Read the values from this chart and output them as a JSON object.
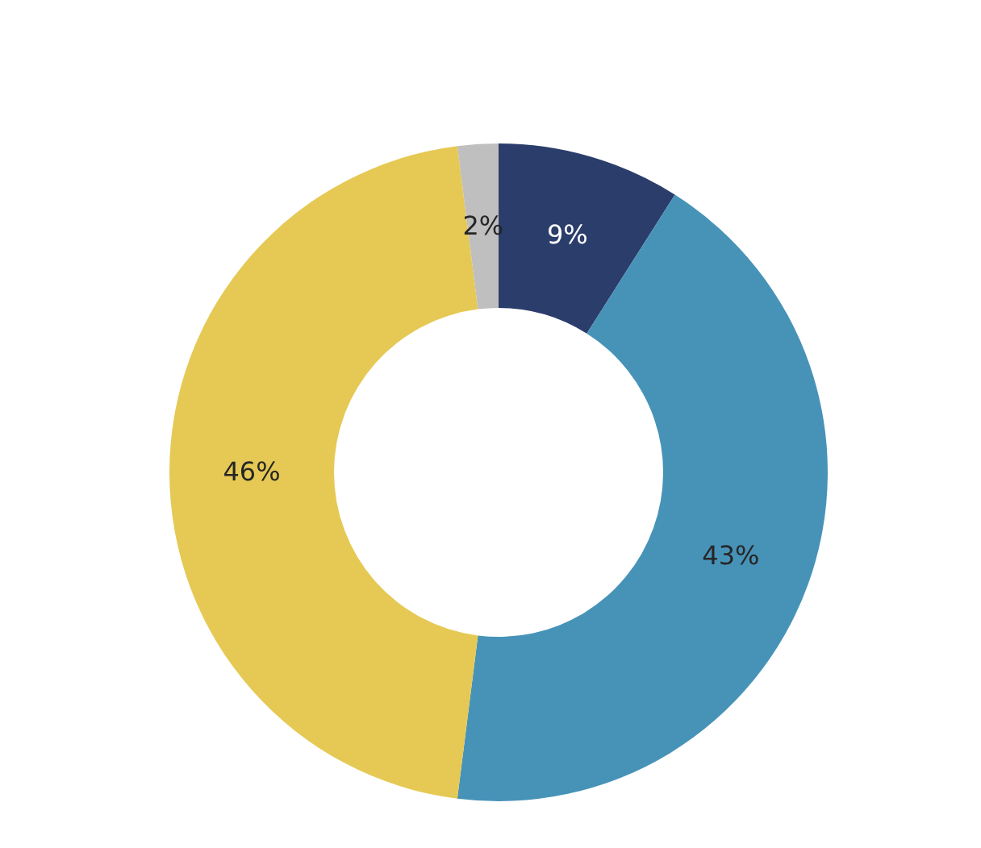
{
  "chart_data": {
    "type": "donut",
    "categories": [
      null,
      null,
      null,
      null
    ],
    "values": [
      9,
      43,
      46,
      2
    ],
    "colors": [
      "#2b3d6b",
      "#4793b8",
      "#e5c954",
      "#bfbfbf"
    ],
    "value_labels": [
      "9%",
      "43%",
      "46%",
      "2%"
    ]
  }
}
